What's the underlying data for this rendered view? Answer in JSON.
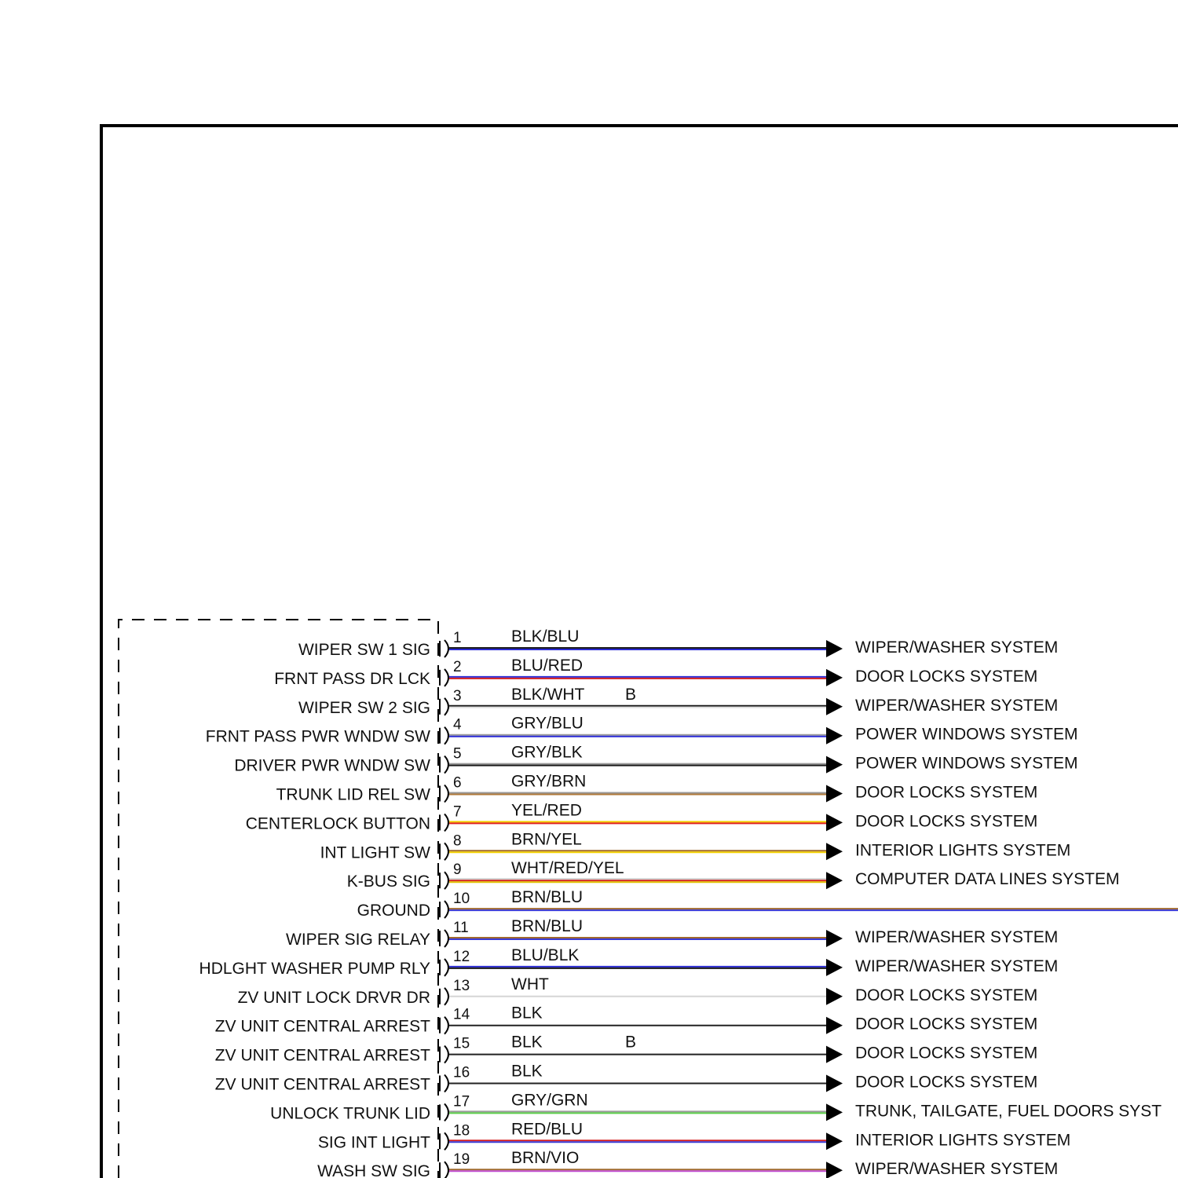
{
  "pins": [
    {
      "num": "1",
      "circuit": "WIPER SW 1 SIG",
      "wire": "BLK/BLU",
      "splice": "",
      "dest": "WIPER/WASHER SYSTEM",
      "colors": [
        "#1a1a1a",
        "#2b2bd6"
      ]
    },
    {
      "num": "2",
      "circuit": "FRNT PASS DR LCK",
      "wire": "BLU/RED",
      "splice": "",
      "dest": "DOOR LOCKS SYSTEM",
      "colors": [
        "#2b2bd6",
        "#d42020"
      ]
    },
    {
      "num": "3",
      "circuit": "WIPER SW 2 SIG",
      "wire": "BLK/WHT",
      "splice": "B",
      "dest": "WIPER/WASHER SYSTEM",
      "colors": [
        "#1a1a1a",
        "#dddddd"
      ]
    },
    {
      "num": "4",
      "circuit": "FRNT PASS PWR WNDW SW",
      "wire": "GRY/BLU",
      "splice": "",
      "dest": "POWER WINDOWS SYSTEM",
      "colors": [
        "#9a9a9a",
        "#2b2bd6"
      ]
    },
    {
      "num": "5",
      "circuit": "DRIVER PWR WNDW SW",
      "wire": "GRY/BLK",
      "splice": "",
      "dest": "POWER WINDOWS SYSTEM",
      "colors": [
        "#9a9a9a",
        "#1a1a1a"
      ]
    },
    {
      "num": "6",
      "circuit": "TRUNK LID REL SW",
      "wire": "GRY/BRN",
      "splice": "",
      "dest": "DOOR LOCKS SYSTEM",
      "colors": [
        "#9a9a9a",
        "#b07a3a"
      ]
    },
    {
      "num": "7",
      "circuit": "CENTERLOCK BUTTON",
      "wire": "YEL/RED",
      "splice": "",
      "dest": "DOOR LOCKS SYSTEM",
      "colors": [
        "#f2d000",
        "#e02020"
      ]
    },
    {
      "num": "8",
      "circuit": "INT LIGHT SW",
      "wire": "BRN/YEL",
      "splice": "",
      "dest": "INTERIOR LIGHTS SYSTEM",
      "colors": [
        "#a06a30",
        "#f2d000"
      ]
    },
    {
      "num": "9",
      "circuit": "K-BUS SIG",
      "wire": "WHT/RED/YEL",
      "splice": "",
      "dest": "COMPUTER DATA LINES SYSTEM",
      "colors": [
        "#cfcfcf",
        "#d42020",
        "#e0c000"
      ]
    },
    {
      "num": "10",
      "circuit": "GROUND",
      "wire": "BRN/BLU",
      "splice": "",
      "dest": "",
      "colors": [
        "#a06a30",
        "#3a3ad6"
      ]
    },
    {
      "num": "11",
      "circuit": "WIPER SIG RELAY",
      "wire": "BRN/BLU",
      "splice": "",
      "dest": "WIPER/WASHER SYSTEM",
      "colors": [
        "#a06a30",
        "#3a3ad6"
      ]
    },
    {
      "num": "12",
      "circuit": "HDLGHT WASHER PUMP RLY",
      "wire": "BLU/BLK",
      "splice": "",
      "dest": "WIPER/WASHER SYSTEM",
      "colors": [
        "#2b2bd6",
        "#1a1a1a"
      ]
    },
    {
      "num": "13",
      "circuit": "ZV UNIT LOCK DRVR DR",
      "wire": "WHT",
      "splice": "",
      "dest": "DOOR LOCKS SYSTEM",
      "colors": [
        "#d6d6d6"
      ]
    },
    {
      "num": "14",
      "circuit": "ZV UNIT CENTRAL ARREST",
      "wire": "BLK",
      "splice": "",
      "dest": "DOOR LOCKS SYSTEM",
      "colors": [
        "#222222"
      ]
    },
    {
      "num": "15",
      "circuit": "ZV UNIT CENTRAL ARREST",
      "wire": "BLK",
      "splice": "B",
      "dest": "DOOR LOCKS SYSTEM",
      "colors": [
        "#222222"
      ]
    },
    {
      "num": "16",
      "circuit": "ZV UNIT CENTRAL ARREST",
      "wire": "BLK",
      "splice": "",
      "dest": "DOOR LOCKS SYSTEM",
      "colors": [
        "#222222"
      ]
    },
    {
      "num": "17",
      "circuit": "UNLOCK TRUNK LID",
      "wire": "GRY/GRN",
      "splice": "",
      "dest": "TRUNK, TAILGATE, FUEL DOORS SYST",
      "colors": [
        "#9a9a9a",
        "#5ccf4a"
      ]
    },
    {
      "num": "18",
      "circuit": "SIG INT LIGHT",
      "wire": "RED/BLU",
      "splice": "",
      "dest": "INTERIOR LIGHTS SYSTEM",
      "colors": [
        "#d42020",
        "#3a3ad6"
      ]
    },
    {
      "num": "19",
      "circuit": "WASH SW SIG",
      "wire": "BRN/VIO",
      "splice": "",
      "dest": "WIPER/WASHER SYSTEM",
      "colors": [
        "#a06a30",
        "#c04ad0"
      ]
    }
  ]
}
